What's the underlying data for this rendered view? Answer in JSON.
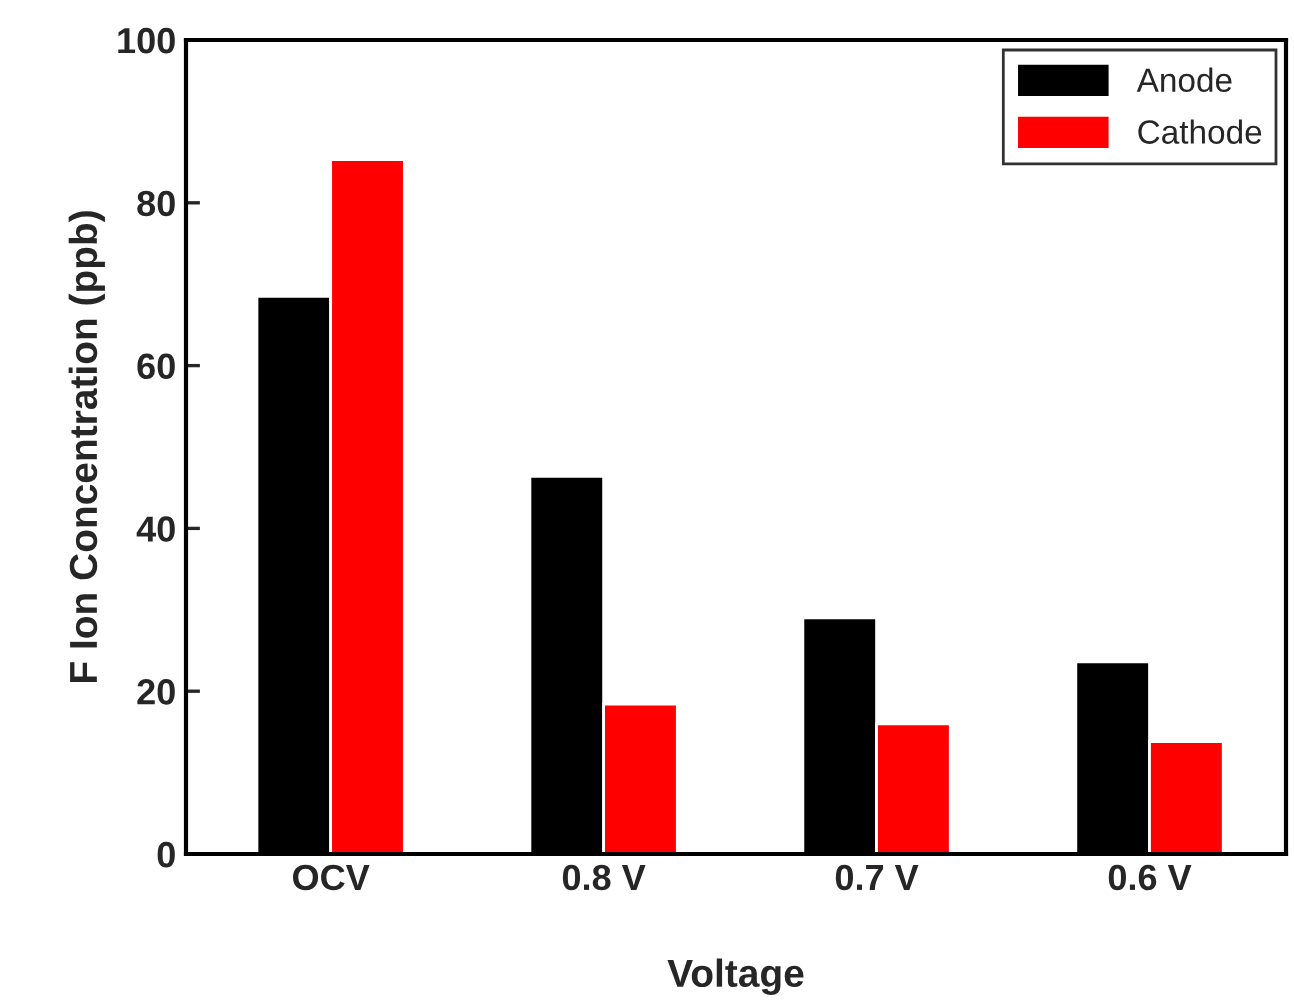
{
  "chart_data": {
    "type": "bar",
    "xlabel": "Voltage",
    "ylabel": "F Ion Concentration (ppb)",
    "categories": [
      "OCV",
      "0.8 V",
      "0.7 V",
      "0.6 V"
    ],
    "series": [
      {
        "name": "Anode",
        "color": "#000000",
        "values": [
          68.5,
          46.4,
          29.0,
          23.6
        ]
      },
      {
        "name": "Cathode",
        "color": "#ff0000",
        "values": [
          85.3,
          18.4,
          16.0,
          13.8
        ]
      }
    ],
    "ylim": [
      0,
      100
    ],
    "yticks": [
      0,
      20,
      40,
      60,
      80,
      100
    ],
    "grid": false,
    "legend": "top right"
  }
}
